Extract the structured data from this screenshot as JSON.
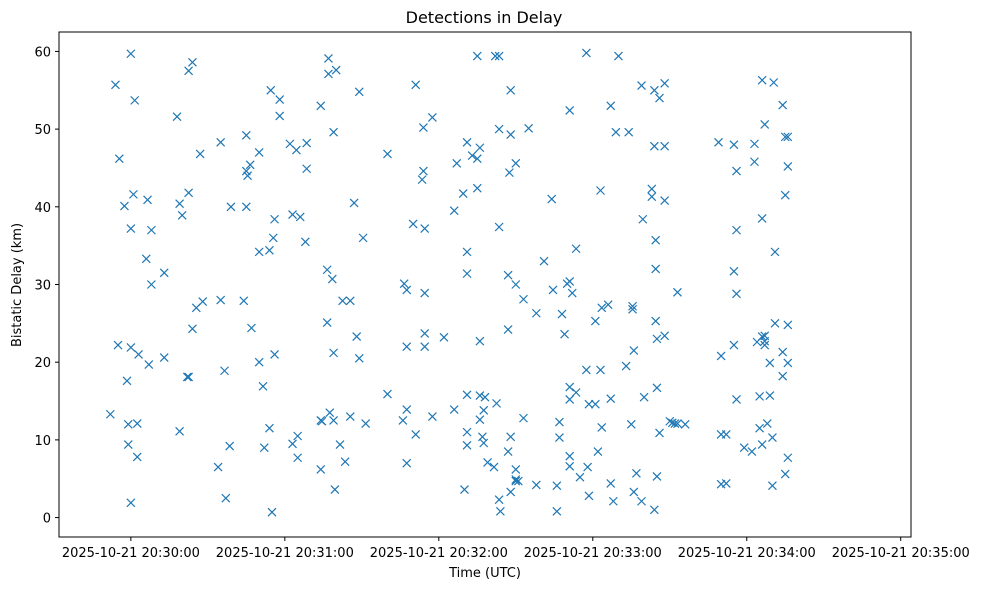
{
  "chart_data": {
    "type": "scatter",
    "title": "Detections in Delay",
    "xlabel": "Time (UTC)",
    "ylabel": "Bistatic Delay (km)",
    "marker": "x",
    "color": "#1f77b4",
    "grid": false,
    "legend": "none",
    "x_units": "seconds after 2025-10-21 20:30:00 UTC",
    "xlim": [
      -28,
      304
    ],
    "ylim": [
      -2.5,
      62.5
    ],
    "x_ticks": [
      {
        "value": 0,
        "label": "2025-10-21 20:30:00"
      },
      {
        "value": 60,
        "label": "2025-10-21 20:31:00"
      },
      {
        "value": 120,
        "label": "2025-10-21 20:32:00"
      },
      {
        "value": 180,
        "label": "2025-10-21 20:33:00"
      },
      {
        "value": 240,
        "label": "2025-10-21 20:34:00"
      },
      {
        "value": 300,
        "label": "2025-10-21 20:35:00"
      }
    ],
    "y_ticks": [
      {
        "value": 0,
        "label": "0"
      },
      {
        "value": 10,
        "label": "10"
      },
      {
        "value": 20,
        "label": "20"
      },
      {
        "value": 30,
        "label": "30"
      },
      {
        "value": 40,
        "label": "40"
      },
      {
        "value": 50,
        "label": "50"
      },
      {
        "value": 60,
        "label": "60"
      }
    ],
    "points": [
      [
        -8,
        13.3
      ],
      [
        -6,
        55.7
      ],
      [
        -5,
        22.2
      ],
      [
        -4.5,
        46.2
      ],
      [
        -2.5,
        40.1
      ],
      [
        -1.5,
        17.6
      ],
      [
        -1,
        12
      ],
      [
        -1,
        9.4
      ],
      [
        0,
        59.7
      ],
      [
        0,
        37.2
      ],
      [
        0,
        21.9
      ],
      [
        0,
        1.9
      ],
      [
        1,
        41.6
      ],
      [
        1.5,
        53.7
      ],
      [
        2.5,
        7.8
      ],
      [
        2.5,
        12.1
      ],
      [
        3,
        21
      ],
      [
        6,
        33.3
      ],
      [
        6.5,
        40.9
      ],
      [
        7,
        19.7
      ],
      [
        8,
        37
      ],
      [
        8,
        30
      ],
      [
        13,
        31.5
      ],
      [
        13,
        20.6
      ],
      [
        18,
        51.6
      ],
      [
        19,
        40.4
      ],
      [
        19,
        11.1
      ],
      [
        20,
        38.9
      ],
      [
        22,
        18.1
      ],
      [
        22.5,
        57.5
      ],
      [
        22.5,
        41.8
      ],
      [
        22.5,
        18.1
      ],
      [
        24,
        58.6
      ],
      [
        24,
        24.3
      ],
      [
        25.5,
        27
      ],
      [
        27,
        46.8
      ],
      [
        28,
        27.8
      ],
      [
        34,
        6.5
      ],
      [
        35,
        48.3
      ],
      [
        35,
        28
      ],
      [
        36.5,
        18.9
      ],
      [
        37,
        2.5
      ],
      [
        38.5,
        9.2
      ],
      [
        39,
        40
      ],
      [
        44,
        27.9
      ],
      [
        45,
        40
      ],
      [
        45,
        49.2
      ],
      [
        45,
        44.6
      ],
      [
        45.5,
        44
      ],
      [
        46.5,
        45.4
      ],
      [
        47,
        24.4
      ],
      [
        50,
        47
      ],
      [
        50,
        34.2
      ],
      [
        50,
        20
      ],
      [
        51.5,
        16.9
      ],
      [
        52,
        9
      ],
      [
        54,
        34.4
      ],
      [
        54,
        11.5
      ],
      [
        54.5,
        55
      ],
      [
        55,
        0.7
      ],
      [
        55.5,
        36
      ],
      [
        56,
        38.4
      ],
      [
        56,
        21
      ],
      [
        58,
        51.7
      ],
      [
        58,
        53.8
      ],
      [
        62,
        48.1
      ],
      [
        63,
        39
      ],
      [
        63,
        9.5
      ],
      [
        64.5,
        47.3
      ],
      [
        65,
        7.7
      ],
      [
        65,
        10.5
      ],
      [
        66,
        38.7
      ],
      [
        68,
        35.5
      ],
      [
        68.5,
        48.2
      ],
      [
        68.5,
        44.9
      ],
      [
        74,
        53
      ],
      [
        74,
        12.5
      ],
      [
        74,
        6.2
      ],
      [
        74.5,
        12.4
      ],
      [
        76.5,
        31.9
      ],
      [
        76.5,
        25.1
      ],
      [
        77,
        59.1
      ],
      [
        77,
        57.1
      ],
      [
        77.5,
        13.5
      ],
      [
        78.5,
        30.7
      ],
      [
        79,
        49.6
      ],
      [
        79,
        21.2
      ],
      [
        79,
        12.5
      ],
      [
        79.5,
        3.6
      ],
      [
        80,
        57.6
      ],
      [
        81.5,
        9.4
      ],
      [
        82.5,
        27.9
      ],
      [
        83.5,
        7.2
      ],
      [
        85.5,
        27.9
      ],
      [
        85.5,
        13
      ],
      [
        87,
        40.5
      ],
      [
        88,
        23.3
      ],
      [
        89,
        54.8
      ],
      [
        89,
        20.5
      ],
      [
        90.5,
        36
      ],
      [
        91.5,
        12.1
      ],
      [
        100,
        46.8
      ],
      [
        100,
        15.9
      ],
      [
        106,
        12.5
      ],
      [
        106.5,
        30.1
      ],
      [
        107.5,
        29.3
      ],
      [
        107.5,
        22
      ],
      [
        107.5,
        13.9
      ],
      [
        107.5,
        7
      ],
      [
        110,
        37.8
      ],
      [
        111,
        55.7
      ],
      [
        111,
        10.7
      ],
      [
        113.5,
        43.5
      ],
      [
        114,
        50.2
      ],
      [
        114,
        44.6
      ],
      [
        114.5,
        37.2
      ],
      [
        114.5,
        28.9
      ],
      [
        114.5,
        23.7
      ],
      [
        114.5,
        22
      ],
      [
        117.5,
        51.5
      ],
      [
        117.5,
        13
      ],
      [
        122,
        23.2
      ],
      [
        126,
        39.5
      ],
      [
        126,
        13.9
      ],
      [
        127,
        45.6
      ],
      [
        129.5,
        41.7
      ],
      [
        130,
        3.6
      ],
      [
        131,
        48.3
      ],
      [
        131,
        34.2
      ],
      [
        131,
        31.4
      ],
      [
        131,
        15.8
      ],
      [
        131,
        11
      ],
      [
        131,
        9.3
      ],
      [
        133,
        46.6
      ],
      [
        135,
        59.4
      ],
      [
        135,
        46.2
      ],
      [
        135,
        42.4
      ],
      [
        136,
        47.6
      ],
      [
        136,
        22.7
      ],
      [
        136,
        15.7
      ],
      [
        136,
        12.6
      ],
      [
        137,
        10.4
      ],
      [
        137.5,
        9.6
      ],
      [
        137.5,
        13.8
      ],
      [
        138,
        15.5
      ],
      [
        139,
        7.1
      ],
      [
        141.5,
        6.5
      ],
      [
        142.5,
        14.7
      ],
      [
        142,
        59.4
      ],
      [
        143.5,
        59.4
      ],
      [
        143.5,
        50
      ],
      [
        143.5,
        37.4
      ],
      [
        143.5,
        2.3
      ],
      [
        144,
        0.8
      ],
      [
        147,
        31.2
      ],
      [
        147,
        24.2
      ],
      [
        147,
        8.5
      ],
      [
        147.5,
        44.4
      ],
      [
        148,
        10.4
      ],
      [
        148,
        3.3
      ],
      [
        148,
        55
      ],
      [
        148,
        49.3
      ],
      [
        150,
        45.6
      ],
      [
        150,
        30
      ],
      [
        150,
        6.2
      ],
      [
        150,
        4.9
      ],
      [
        150,
        4.7
      ],
      [
        151,
        4.7
      ],
      [
        153,
        28.1
      ],
      [
        153,
        12.8
      ],
      [
        155,
        50.1
      ],
      [
        158,
        26.3
      ],
      [
        158,
        4.2
      ],
      [
        161,
        33
      ],
      [
        164,
        41
      ],
      [
        164.5,
        29.3
      ],
      [
        166,
        4.1
      ],
      [
        166,
        0.8
      ],
      [
        167,
        12.3
      ],
      [
        167,
        10.3
      ],
      [
        168,
        26.2
      ],
      [
        169,
        23.6
      ],
      [
        170,
        30.1
      ],
      [
        171,
        52.4
      ],
      [
        171,
        30.4
      ],
      [
        171,
        16.8
      ],
      [
        171,
        15.2
      ],
      [
        171,
        7.9
      ],
      [
        171,
        6.6
      ],
      [
        172,
        28.9
      ],
      [
        173.5,
        16.1
      ],
      [
        173.5,
        34.6
      ],
      [
        175,
        5.2
      ],
      [
        177.5,
        59.8
      ],
      [
        177.5,
        19
      ],
      [
        178,
        6.5
      ],
      [
        178.5,
        14.6
      ],
      [
        178.5,
        2.8
      ],
      [
        181,
        25.3
      ],
      [
        181,
        14.6
      ],
      [
        182,
        8.5
      ],
      [
        183,
        19
      ],
      [
        183,
        42.1
      ],
      [
        183.5,
        27
      ],
      [
        183.5,
        11.6
      ],
      [
        186,
        27.4
      ],
      [
        187,
        53
      ],
      [
        187,
        15.3
      ],
      [
        187,
        4.4
      ],
      [
        188,
        2.1
      ],
      [
        189,
        49.6
      ],
      [
        190,
        59.4
      ],
      [
        193,
        19.5
      ],
      [
        194,
        49.6
      ],
      [
        195,
        12
      ],
      [
        195.5,
        27.2
      ],
      [
        195.5,
        26.8
      ],
      [
        196,
        3.3
      ],
      [
        196,
        21.5
      ],
      [
        197,
        5.7
      ],
      [
        199,
        55.6
      ],
      [
        199,
        2.1
      ],
      [
        199.5,
        38.4
      ],
      [
        200,
        15.5
      ],
      [
        203,
        42.3
      ],
      [
        203,
        41.3
      ],
      [
        204,
        47.8
      ],
      [
        204,
        1
      ],
      [
        204,
        55
      ],
      [
        204.5,
        35.7
      ],
      [
        204.5,
        32
      ],
      [
        204.5,
        25.3
      ],
      [
        205,
        23
      ],
      [
        205,
        16.7
      ],
      [
        205,
        5.3
      ],
      [
        206,
        54
      ],
      [
        206,
        10.9
      ],
      [
        208,
        55.9
      ],
      [
        208,
        40.8
      ],
      [
        208,
        23.4
      ],
      [
        208,
        47.8
      ],
      [
        210,
        12.4
      ],
      [
        211,
        12.2
      ],
      [
        212,
        12.1
      ],
      [
        213,
        12.1
      ],
      [
        213,
        29
      ],
      [
        216,
        12
      ],
      [
        229,
        48.3
      ],
      [
        230,
        20.8
      ],
      [
        230,
        10.7
      ],
      [
        230,
        4.3
      ],
      [
        232,
        10.7
      ],
      [
        232,
        4.4
      ],
      [
        235,
        48
      ],
      [
        235,
        31.7
      ],
      [
        235,
        22.2
      ],
      [
        236,
        44.6
      ],
      [
        236,
        37
      ],
      [
        236,
        28.8
      ],
      [
        236,
        15.2
      ],
      [
        239,
        9
      ],
      [
        242,
        8.5
      ],
      [
        243,
        45.8
      ],
      [
        243,
        48.1
      ],
      [
        244,
        22.6
      ],
      [
        245,
        11.5
      ],
      [
        245,
        15.6
      ],
      [
        246,
        56.3
      ],
      [
        246,
        38.5
      ],
      [
        246,
        23.3
      ],
      [
        246,
        9.4
      ],
      [
        247,
        50.6
      ],
      [
        247,
        23.4
      ],
      [
        247,
        22.7
      ],
      [
        247,
        22.2
      ],
      [
        248,
        12.1
      ],
      [
        249,
        19.9
      ],
      [
        249,
        15.7
      ],
      [
        250,
        4.1
      ],
      [
        250,
        10.3
      ],
      [
        250.5,
        56
      ],
      [
        251,
        34.2
      ],
      [
        251,
        25
      ],
      [
        254,
        53.1
      ],
      [
        254,
        21.3
      ],
      [
        254,
        18.2
      ],
      [
        255,
        49
      ],
      [
        255,
        41.5
      ],
      [
        255,
        5.6
      ],
      [
        256,
        49
      ],
      [
        256,
        45.2
      ],
      [
        256,
        24.8
      ],
      [
        256,
        19.9
      ],
      [
        256,
        7.7
      ]
    ]
  }
}
